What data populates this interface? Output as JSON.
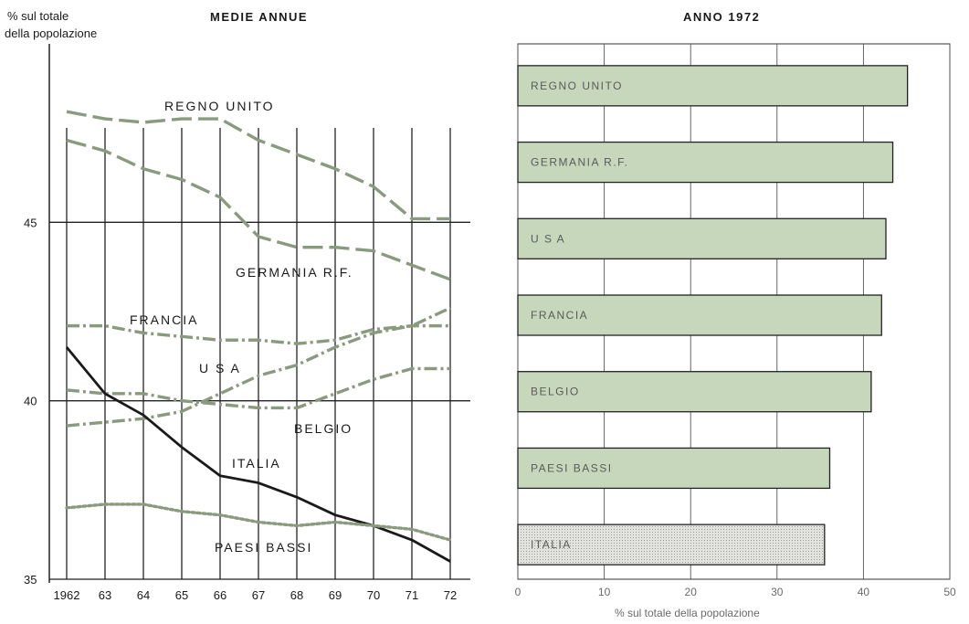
{
  "chart_data": [
    {
      "type": "line",
      "title": "MEDIE ANNUE",
      "ylabel": "% sul totale della popolazione",
      "ylabel_line1": "% sul totale",
      "ylabel_line2": "della popolazione",
      "ylim": [
        35,
        50
      ],
      "yticks": [
        35,
        40,
        45
      ],
      "categories": [
        "1962",
        "63",
        "64",
        "65",
        "66",
        "67",
        "68",
        "69",
        "70",
        "71",
        "72"
      ],
      "grid": true,
      "series": [
        {
          "name": "REGNO UNITO",
          "style": "dash",
          "color": "#8a9a7e",
          "values": [
            48.1,
            47.9,
            47.8,
            47.9,
            47.9,
            47.3,
            46.9,
            46.5,
            46.0,
            45.1,
            45.1
          ]
        },
        {
          "name": "GERMANIA R.F.",
          "style": "dash",
          "color": "#8a9a7e",
          "values": [
            47.3,
            47.0,
            46.5,
            46.2,
            45.7,
            44.6,
            44.3,
            44.3,
            44.2,
            43.8,
            43.4
          ]
        },
        {
          "name": "FRANCIA",
          "style": "dashdot",
          "color": "#8a9a7e",
          "values": [
            42.1,
            42.1,
            41.9,
            41.8,
            41.7,
            41.7,
            41.6,
            41.7,
            42.0,
            42.1,
            42.1
          ]
        },
        {
          "name": "U S A",
          "style": "dashdot",
          "color": "#8a9a7e",
          "values": [
            39.3,
            39.4,
            39.5,
            39.7,
            40.2,
            40.7,
            41.0,
            41.5,
            41.9,
            42.1,
            42.6
          ]
        },
        {
          "name": "BELGIO",
          "style": "dashdot",
          "color": "#8a9a7e",
          "values": [
            40.3,
            40.2,
            40.2,
            40.0,
            39.9,
            39.8,
            39.8,
            40.2,
            40.6,
            40.9,
            40.9
          ]
        },
        {
          "name": "ITALIA",
          "style": "solid",
          "color": "#1a1a1a",
          "values": [
            41.5,
            40.2,
            39.6,
            38.7,
            37.9,
            37.7,
            37.3,
            36.8,
            36.5,
            36.1,
            35.5
          ]
        },
        {
          "name": "PAESI BASSI",
          "style": "dot",
          "color": "#8a9a7e",
          "values": [
            37.0,
            37.1,
            37.1,
            36.9,
            36.8,
            36.6,
            36.5,
            36.6,
            36.5,
            36.4,
            36.1
          ]
        }
      ]
    },
    {
      "type": "bar",
      "orientation": "horizontal",
      "title": "ANNO 1972",
      "xlabel": "% sul totale della popolazione",
      "xlim": [
        0,
        50
      ],
      "xticks": [
        0,
        10,
        20,
        30,
        40,
        50
      ],
      "grid": true,
      "categories": [
        "REGNO UNITO",
        "GERMANIA R.F.",
        "U S A",
        "FRANCIA",
        "BELGIO",
        "PAESI BASSI",
        "ITALIA"
      ],
      "values": [
        45.1,
        43.4,
        42.6,
        42.1,
        40.9,
        36.1,
        35.5
      ],
      "colors": [
        "#c6d7bb",
        "#c6d7bb",
        "#c6d7bb",
        "#c6d7bb",
        "#c6d7bb",
        "#c6d7bb",
        "#d9d9d4"
      ]
    }
  ]
}
